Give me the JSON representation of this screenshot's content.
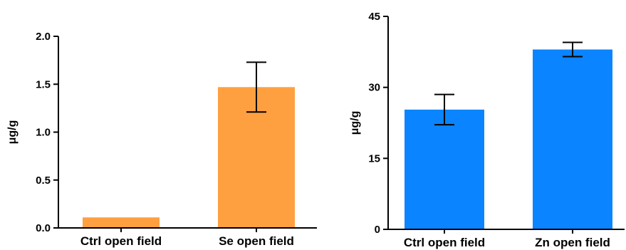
{
  "chart_data": [
    {
      "type": "bar",
      "categories": [
        "Ctrl open field",
        "Se open field"
      ],
      "values": [
        0.11,
        1.47
      ],
      "errors": [
        0.0,
        0.26
      ],
      "ylabel": "μg/g",
      "ylim": [
        0,
        2.0
      ],
      "yticks": [
        0.0,
        0.5,
        1.0,
        1.5,
        2.0
      ],
      "ytick_labels": [
        "0.0",
        "0.5",
        "1.0",
        "1.5",
        "2.0"
      ],
      "bar_color": "#ffa040"
    },
    {
      "type": "bar",
      "categories": [
        "Ctrl open field",
        "Zn open field"
      ],
      "values": [
        25.3,
        38.0
      ],
      "errors": [
        3.2,
        1.5
      ],
      "ylabel": "μg/g",
      "ylim": [
        0,
        45
      ],
      "yticks": [
        0,
        15,
        30,
        45
      ],
      "ytick_labels": [
        "0",
        "15",
        "30",
        "45"
      ],
      "bar_color": "#0a84ff"
    }
  ]
}
